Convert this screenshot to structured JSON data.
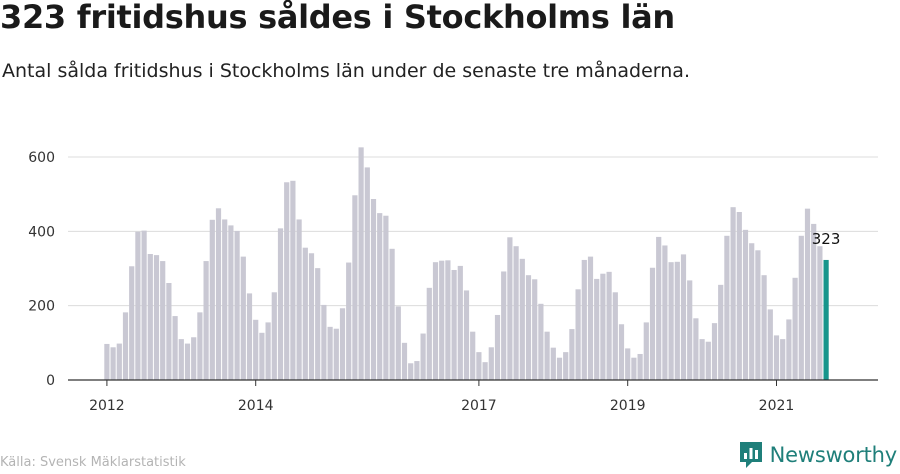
{
  "title": "323 fritidshus såldes i Stockholms län",
  "subtitle": "Antal sålda fritidshus i Stockholms län under de senaste tre månaderna.",
  "source": "Källa: Svensk Mäklarstatistik",
  "brand": "Newsworthy",
  "colors": {
    "bar": "#c9c8d3",
    "highlight": "#16958b",
    "grid": "#dcdcdc",
    "axis": "#333333",
    "brand": "#1f7f7a"
  },
  "chart_data": {
    "type": "bar",
    "ylim": [
      0,
      650
    ],
    "yticks": [
      0,
      200,
      400,
      600
    ],
    "xticks": [
      "2012",
      "2014",
      "2017",
      "2019",
      "2021"
    ],
    "grid": true,
    "start": "2012-01",
    "highlight_label": "323",
    "values": [
      97,
      88,
      98,
      182,
      306,
      399,
      402,
      339,
      336,
      320,
      261,
      172,
      110,
      98,
      115,
      182,
      320,
      431,
      462,
      432,
      416,
      401,
      332,
      233,
      162,
      127,
      155,
      236,
      408,
      532,
      536,
      432,
      356,
      341,
      301,
      202,
      143,
      138,
      193,
      316,
      497,
      626,
      572,
      487,
      449,
      442,
      353,
      198,
      100,
      45,
      51,
      125,
      248,
      317,
      321,
      322,
      296,
      307,
      241,
      130,
      75,
      48,
      88,
      175,
      292,
      384,
      360,
      326,
      282,
      271,
      205,
      130,
      87,
      60,
      75,
      137,
      244,
      323,
      332,
      272,
      286,
      291,
      236,
      150,
      85,
      60,
      70,
      155,
      302,
      385,
      362,
      317,
      318,
      338,
      268,
      166,
      110,
      103,
      153,
      256,
      388,
      465,
      452,
      404,
      368,
      349,
      282,
      190,
      120,
      110,
      163,
      275,
      388,
      461,
      420,
      360,
      323
    ]
  }
}
